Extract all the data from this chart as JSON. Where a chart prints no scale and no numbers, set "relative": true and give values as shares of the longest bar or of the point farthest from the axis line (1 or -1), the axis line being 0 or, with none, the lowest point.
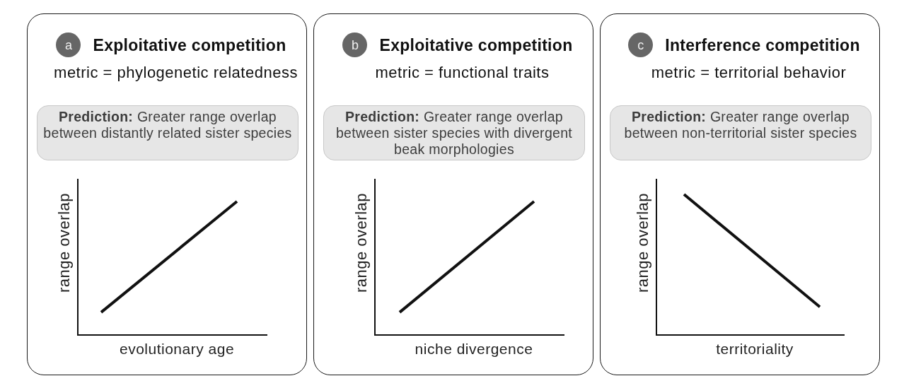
{
  "chart_data": [
    {
      "type": "line",
      "title": "Exploitative competition",
      "subtitle": "metric = phylogenetic relatedness",
      "xlabel": "evolutionary age",
      "ylabel": "range overlap",
      "annotations": [
        "a",
        "Prediction: Greater range overlap between distantly related sister species"
      ],
      "categories": [
        null,
        null
      ],
      "relative": true,
      "series": [
        {
          "color": "#111111",
          "values": [
            0.17,
            1
          ]
        }
      ]
    },
    {
      "type": "line",
      "title": "Exploitative competition",
      "subtitle": "metric = functional traits",
      "xlabel": "niche divergence",
      "ylabel": "range overlap",
      "annotations": [
        "b",
        "Prediction: Greater range overlap between sister species with divergent beak morphologies"
      ],
      "categories": [
        null,
        null
      ],
      "relative": true,
      "series": [
        {
          "color": "#111111",
          "values": [
            0.17,
            1
          ]
        }
      ]
    },
    {
      "type": "line",
      "title": "Interference competition",
      "subtitle": "metric = territorial behavior",
      "xlabel": "territoriality",
      "ylabel": "range overlap",
      "annotations": [
        "c",
        "Prediction: Greater range overlap between non-territorial sister species"
      ],
      "categories": [
        null,
        null
      ],
      "relative": true,
      "series": [
        {
          "color": "#111111",
          "values": [
            1,
            0.2
          ]
        }
      ]
    }
  ]
}
